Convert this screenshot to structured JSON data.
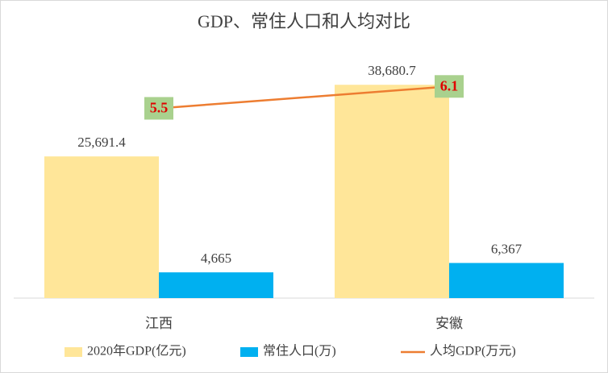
{
  "chart_data": {
    "type": "combo",
    "title": "GDP、常住人口和人均对比",
    "categories": [
      "江西",
      "安徽"
    ],
    "series": [
      {
        "name": "2020年GDP(亿元)",
        "type": "bar",
        "color": "#FFE699",
        "values": [
          25691.4,
          38680.7
        ],
        "value_labels": [
          "25,691.4",
          "38,680.7"
        ]
      },
      {
        "name": "常住人口(万)",
        "type": "bar",
        "color": "#00B0F0",
        "values": [
          4665,
          6367
        ],
        "value_labels": [
          "4,665",
          "6,367"
        ]
      },
      {
        "name": "人均GDP(万元)",
        "type": "line",
        "axis": "y2",
        "color": "#ED7D31",
        "label_fill": "#A9D18E",
        "label_color": "#E00000",
        "values": [
          5.5,
          6.1
        ]
      }
    ],
    "ylim": [
      0,
      45000
    ],
    "y2lim": [
      0.3,
      7.1
    ],
    "legend": "bottom"
  }
}
